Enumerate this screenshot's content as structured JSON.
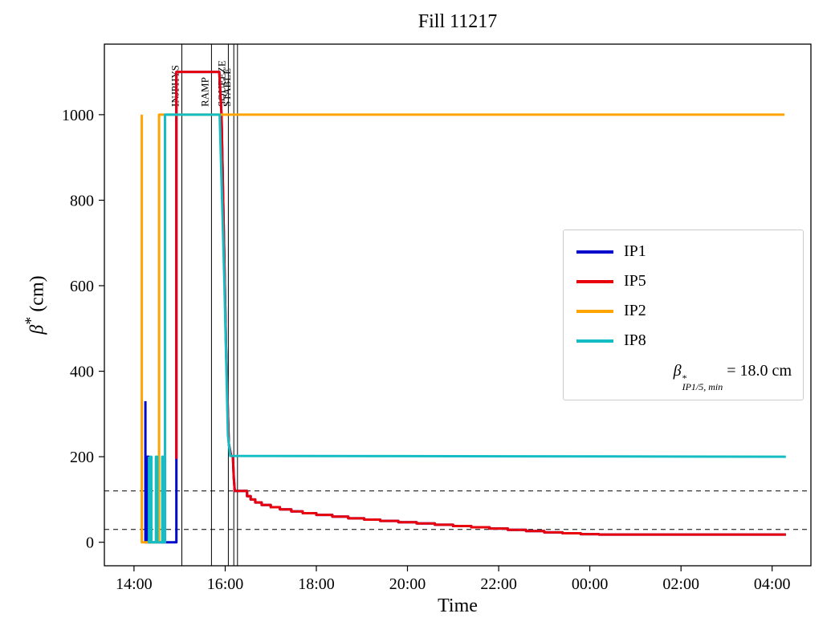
{
  "title": "Fill 11217",
  "xlabel": "Time",
  "ylabel": {
    "symbol": "β",
    "sup": "*",
    "units": " (cm)"
  },
  "annotation": {
    "symbol": "β",
    "sup": "*",
    "sub": "IP1/5, min",
    "rest": " = 18.0 cm"
  },
  "chart_data": {
    "type": "line",
    "title": "Fill 11217",
    "xlabel": "Time",
    "ylabel": "beta* (cm)",
    "legend_position": "center right",
    "grid": false,
    "x_axis": {
      "min": 13.35,
      "max": 28.85,
      "ticks": [
        {
          "v": 14,
          "label": "14:00"
        },
        {
          "v": 16,
          "label": "16:00"
        },
        {
          "v": 18,
          "label": "18:00"
        },
        {
          "v": 20,
          "label": "20:00"
        },
        {
          "v": 22,
          "label": "22:00"
        },
        {
          "v": 24,
          "label": "00:00"
        },
        {
          "v": 26,
          "label": "02:00"
        },
        {
          "v": 28,
          "label": "04:00"
        }
      ]
    },
    "y_axis": {
      "min": -55,
      "max": 1165,
      "ticks": [
        0,
        200,
        400,
        600,
        800,
        1000
      ]
    },
    "hlines": [
      {
        "y": 120,
        "style": "dashed",
        "color": "#000000"
      },
      {
        "y": 30,
        "style": "dashed",
        "color": "#000000"
      }
    ],
    "vlines": [
      {
        "x": 15.05,
        "label": "INJPHYS"
      },
      {
        "x": 15.7,
        "label": "RAMP"
      },
      {
        "x": 16.07,
        "label": "SQUEEZE"
      },
      {
        "x": 16.19,
        "label": "STABLE"
      },
      {
        "x": 16.27,
        "label": ""
      }
    ],
    "series": [
      {
        "name": "IP1",
        "color": "#0008cc",
        "points": [
          [
            14.25,
            330
          ],
          [
            14.25,
            0
          ],
          [
            14.29,
            0
          ],
          [
            14.29,
            200
          ],
          [
            14.32,
            200
          ],
          [
            14.32,
            0
          ],
          [
            14.93,
            0
          ],
          [
            14.93,
            1100
          ],
          [
            15.87,
            1100
          ],
          [
            15.92,
            1000
          ],
          [
            16.02,
            450
          ],
          [
            16.08,
            230
          ],
          [
            16.13,
            203
          ],
          [
            16.17,
            200
          ],
          [
            16.19,
            150
          ],
          [
            16.21,
            120
          ],
          [
            16.48,
            120
          ],
          [
            16.48,
            108
          ],
          [
            16.56,
            108
          ],
          [
            16.56,
            100
          ],
          [
            16.66,
            100
          ],
          [
            16.66,
            93
          ],
          [
            16.8,
            93
          ],
          [
            16.8,
            87
          ],
          [
            17.0,
            87
          ],
          [
            17.0,
            82
          ],
          [
            17.2,
            82
          ],
          [
            17.2,
            77
          ],
          [
            17.45,
            77
          ],
          [
            17.45,
            72
          ],
          [
            17.7,
            72
          ],
          [
            17.7,
            68
          ],
          [
            18.0,
            68
          ],
          [
            18.0,
            64
          ],
          [
            18.35,
            64
          ],
          [
            18.35,
            60
          ],
          [
            18.7,
            60
          ],
          [
            18.7,
            56
          ],
          [
            19.05,
            56
          ],
          [
            19.05,
            53
          ],
          [
            19.4,
            53
          ],
          [
            19.4,
            50
          ],
          [
            19.8,
            50
          ],
          [
            19.8,
            47
          ],
          [
            20.2,
            47
          ],
          [
            20.2,
            44
          ],
          [
            20.6,
            44
          ],
          [
            20.6,
            41
          ],
          [
            21.0,
            41
          ],
          [
            21.0,
            38
          ],
          [
            21.4,
            38
          ],
          [
            21.4,
            35
          ],
          [
            21.8,
            35
          ],
          [
            21.8,
            32
          ],
          [
            22.2,
            32
          ],
          [
            22.2,
            29
          ],
          [
            22.6,
            29
          ],
          [
            22.6,
            26
          ],
          [
            23.0,
            26
          ],
          [
            23.0,
            23
          ],
          [
            23.4,
            23
          ],
          [
            23.4,
            21
          ],
          [
            23.8,
            21
          ],
          [
            23.8,
            19
          ],
          [
            24.2,
            19
          ],
          [
            24.2,
            18
          ],
          [
            28.3,
            18
          ]
        ]
      },
      {
        "name": "IP5",
        "color": "#e8000b",
        "points": [
          [
            14.93,
            195
          ],
          [
            14.93,
            1100
          ],
          [
            15.87,
            1100
          ],
          [
            15.92,
            1000
          ],
          [
            16.02,
            450
          ],
          [
            16.08,
            230
          ],
          [
            16.13,
            203
          ],
          [
            16.17,
            200
          ],
          [
            16.19,
            150
          ],
          [
            16.21,
            120
          ],
          [
            16.48,
            120
          ],
          [
            16.48,
            108
          ],
          [
            16.56,
            108
          ],
          [
            16.56,
            100
          ],
          [
            16.66,
            100
          ],
          [
            16.66,
            93
          ],
          [
            16.8,
            93
          ],
          [
            16.8,
            87
          ],
          [
            17.0,
            87
          ],
          [
            17.0,
            82
          ],
          [
            17.2,
            82
          ],
          [
            17.2,
            77
          ],
          [
            17.45,
            77
          ],
          [
            17.45,
            72
          ],
          [
            17.7,
            72
          ],
          [
            17.7,
            68
          ],
          [
            18.0,
            68
          ],
          [
            18.0,
            64
          ],
          [
            18.35,
            64
          ],
          [
            18.35,
            60
          ],
          [
            18.7,
            60
          ],
          [
            18.7,
            56
          ],
          [
            19.05,
            56
          ],
          [
            19.05,
            53
          ],
          [
            19.4,
            53
          ],
          [
            19.4,
            50
          ],
          [
            19.8,
            50
          ],
          [
            19.8,
            47
          ],
          [
            20.2,
            47
          ],
          [
            20.2,
            44
          ],
          [
            20.6,
            44
          ],
          [
            20.6,
            41
          ],
          [
            21.0,
            41
          ],
          [
            21.0,
            38
          ],
          [
            21.4,
            38
          ],
          [
            21.4,
            35
          ],
          [
            21.8,
            35
          ],
          [
            21.8,
            32
          ],
          [
            22.2,
            32
          ],
          [
            22.2,
            29
          ],
          [
            22.6,
            29
          ],
          [
            22.6,
            26
          ],
          [
            23.0,
            26
          ],
          [
            23.0,
            23
          ],
          [
            23.4,
            23
          ],
          [
            23.4,
            21
          ],
          [
            23.8,
            21
          ],
          [
            23.8,
            19
          ],
          [
            24.2,
            19
          ],
          [
            24.2,
            18
          ],
          [
            28.3,
            18
          ]
        ]
      },
      {
        "name": "IP2",
        "color": "#ffa400",
        "points": [
          [
            14.17,
            1000
          ],
          [
            14.17,
            0
          ],
          [
            14.55,
            0
          ],
          [
            14.55,
            1000
          ],
          [
            28.27,
            1000
          ]
        ]
      },
      {
        "name": "IP8",
        "color": "#13bdc3",
        "points": [
          [
            14.33,
            200
          ],
          [
            14.33,
            0
          ],
          [
            14.36,
            0
          ],
          [
            14.36,
            200
          ],
          [
            14.38,
            200
          ],
          [
            14.38,
            0
          ],
          [
            14.48,
            0
          ],
          [
            14.48,
            200
          ],
          [
            14.51,
            200
          ],
          [
            14.51,
            0
          ],
          [
            14.62,
            0
          ],
          [
            14.62,
            200
          ],
          [
            14.65,
            200
          ],
          [
            14.65,
            0
          ],
          [
            14.68,
            0
          ],
          [
            14.68,
            1000
          ],
          [
            15.88,
            1000
          ],
          [
            15.98,
            620
          ],
          [
            16.06,
            250
          ],
          [
            16.11,
            202
          ],
          [
            28.3,
            200
          ]
        ]
      }
    ],
    "annotation_text": "beta*_IP1/5,min = 18.0 cm"
  }
}
